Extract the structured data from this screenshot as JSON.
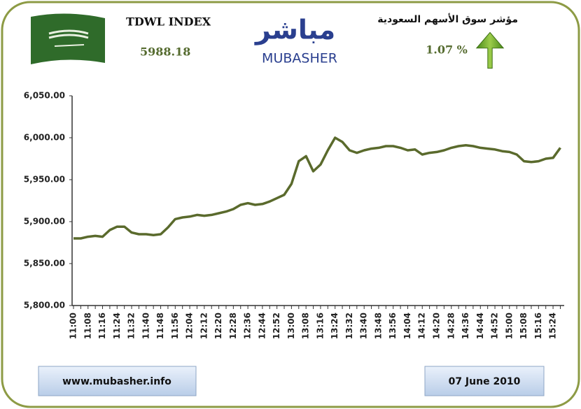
{
  "chart_data": {
    "type": "line",
    "index_name": "TDWL INDEX",
    "index_value": "5988.18",
    "market_name": "مؤشر سوق الأسهم السعودية",
    "change": "1.07 %",
    "logo_arabic": "مباشر",
    "logo_latin": "MUBASHER",
    "website": "www.mubasher.info",
    "date": "07 June 2010",
    "color": "#5a6a2c",
    "categories": [
      "11:00",
      null,
      "11:08",
      null,
      "11:16",
      null,
      "11:24",
      null,
      "11:32",
      null,
      "11:40",
      null,
      "11:48",
      null,
      "11:56",
      null,
      "12:04",
      null,
      "12:12",
      null,
      "12:20",
      null,
      "12:28",
      null,
      "12:36",
      null,
      "12:44",
      null,
      "12:52",
      null,
      "13:00",
      null,
      "13:08",
      null,
      "13:16",
      null,
      "13:24",
      null,
      "13:32",
      null,
      "13:40",
      null,
      "13:48",
      null,
      "13:56",
      null,
      "14:04",
      null,
      "14:12",
      null,
      "14:20",
      null,
      "14:28",
      null,
      "14:36",
      null,
      "14:44",
      null,
      "14:52",
      null,
      "15:00",
      null,
      "15:08",
      null,
      "15:16",
      null,
      "15:24",
      null
    ],
    "values": [
      5880,
      5880,
      5882,
      5883,
      5882,
      5890,
      5894,
      5894,
      5887,
      5885,
      5885,
      5884,
      5885,
      5893,
      5903,
      5905,
      5906,
      5908,
      5907,
      5908,
      5910,
      5912,
      5915,
      5920,
      5922,
      5920,
      5921,
      5924,
      5928,
      5932,
      5945,
      5972,
      5978,
      5960,
      5968,
      5985,
      6000,
      5995,
      5985,
      5982,
      5985,
      5987,
      5988,
      5990,
      5990,
      5988,
      5985,
      5986,
      5980,
      5982,
      5983,
      5985,
      5988,
      5990,
      5991,
      5990,
      5988,
      5987,
      5986,
      5984,
      5983,
      5980,
      5972,
      5971,
      5972,
      5975,
      5976,
      5988
    ],
    "ylim": [
      5800,
      6050
    ],
    "yticks": [
      {
        "value": 5800,
        "label": "5,800.00"
      },
      {
        "value": 5850,
        "label": "5,850.00"
      },
      {
        "value": 5900,
        "label": "5,900.00"
      },
      {
        "value": 5950,
        "label": "5,950.00"
      },
      {
        "value": 6000,
        "label": "6,000.00"
      },
      {
        "value": 6050,
        "label": "6,050.00"
      }
    ]
  }
}
